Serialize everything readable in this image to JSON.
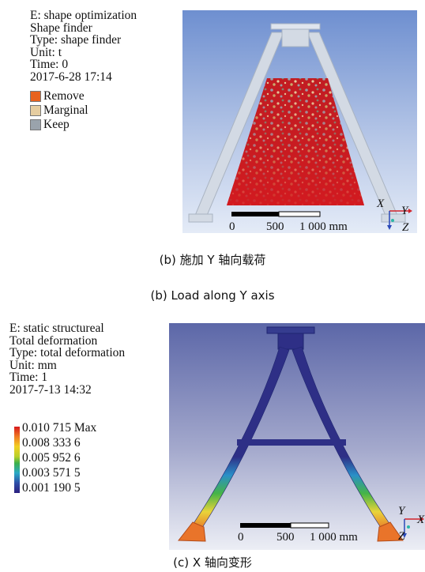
{
  "panel_b": {
    "info": {
      "line1": "E: shape optimization",
      "line2": "Shape finder",
      "line3": "Type: shape finder",
      "line4": "Unit: t",
      "line5": "Time: 0",
      "line6": "2017-6-28 17:14"
    },
    "legend": [
      {
        "label": "Remove",
        "color": "#e8621e"
      },
      {
        "label": "Marginal",
        "color": "#e6cda0"
      },
      {
        "label": "Keep",
        "color": "#9aa3ac"
      }
    ],
    "scale": {
      "t0": "0",
      "t1": "500",
      "t2": "1 000 mm"
    },
    "axes": {
      "a": "X",
      "b": "Y",
      "c": "Z"
    },
    "caption_cn": "(b) 施加 Y 轴向载荷",
    "caption_en": "(b) Load along Y axis"
  },
  "panel_c": {
    "info": {
      "line1": "E: static structureal",
      "line2": "Total deformation",
      "line3": "Type: total deformation",
      "line4": "Unit: mm",
      "line5": "Time: 1",
      "line6": "2017-7-13 14:32"
    },
    "colorbar": [
      {
        "label": "0.010 715 Max"
      },
      {
        "label": "0.008 333 6"
      },
      {
        "label": "0.005 952 6"
      },
      {
        "label": "0.003 571 5"
      },
      {
        "label": "0.001 190 5"
      }
    ],
    "scale": {
      "t0": "0",
      "t1": "500",
      "t2": "1 000 mm"
    },
    "axes": {
      "a": "Y",
      "b": "X",
      "c": "Z"
    },
    "caption": "(c) X 轴向变形"
  },
  "colors": {
    "sky_top": "#6e8fd0",
    "sky_bottom": "#dfe8f6",
    "frame_b": "#d6dde6",
    "red": "#d41a1f",
    "navy": "#2e2f86",
    "bg_c_top": "#5f6aa9",
    "bg_c_bottom": "#e9eaf2"
  }
}
